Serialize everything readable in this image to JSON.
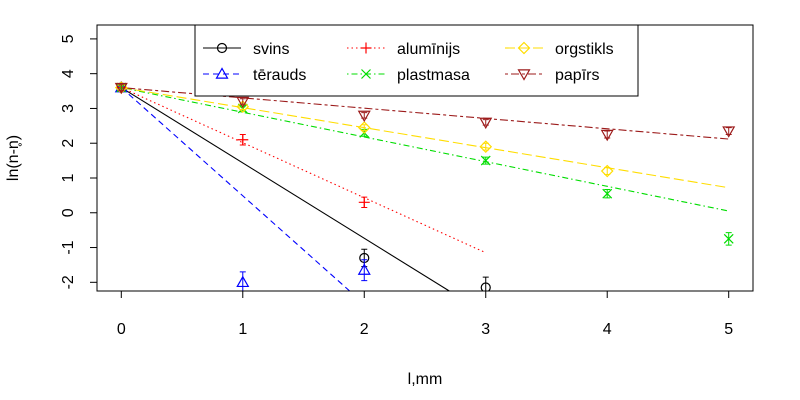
{
  "chart_data": {
    "type": "scatter",
    "title": "",
    "xlabel": "l,mm",
    "ylabel": "ln(n-n̥)",
    "xlim": [
      -0.2,
      5.2
    ],
    "ylim": [
      -2.25,
      5.4
    ],
    "x_ticks": [
      0,
      1,
      2,
      3,
      4,
      5
    ],
    "y_ticks": [
      -2,
      -1,
      0,
      1,
      2,
      3,
      4,
      5
    ],
    "grid": false,
    "legend_position": "top",
    "series": [
      {
        "name": "svins",
        "color": "#000000",
        "marker": "circle",
        "line": "solid",
        "x": [
          0,
          2,
          3
        ],
        "y": [
          3.6,
          -1.3,
          -2.15
        ],
        "err": [
          0.1,
          0.25,
          0.3
        ],
        "fit": {
          "x": [
            0,
            2.7
          ],
          "y": [
            3.6,
            -2.25
          ]
        }
      },
      {
        "name": "tērauds",
        "color": "#0000ff",
        "marker": "triangle-up",
        "line": "dashed",
        "x": [
          0,
          1,
          2
        ],
        "y": [
          3.6,
          -2.0,
          -1.65
        ],
        "err": [
          0.1,
          0.3,
          0.3
        ],
        "fit": {
          "x": [
            0,
            1.88
          ],
          "y": [
            3.6,
            -2.25
          ]
        }
      },
      {
        "name": "alumīnijs",
        "color": "#ff0000",
        "marker": "plus",
        "line": "dotted",
        "x": [
          0,
          1,
          2
        ],
        "y": [
          3.6,
          2.1,
          0.3
        ],
        "err": [
          0.1,
          0.15,
          0.15
        ],
        "fit": {
          "x": [
            0,
            3
          ],
          "y": [
            3.6,
            -1.15
          ]
        }
      },
      {
        "name": "plastmasa",
        "color": "#00dd00",
        "marker": "cross",
        "line": "dashdot",
        "x": [
          0,
          1,
          2,
          3,
          4,
          5
        ],
        "y": [
          3.6,
          3.0,
          2.3,
          1.5,
          0.55,
          -0.75
        ],
        "err": [
          0.08,
          0.08,
          0.1,
          0.1,
          0.12,
          0.18
        ],
        "fit": {
          "x": [
            0,
            5
          ],
          "y": [
            3.6,
            0.05
          ]
        }
      },
      {
        "name": "orgstikls",
        "color": "#ffdd00",
        "marker": "diamond",
        "line": "longdash",
        "x": [
          0,
          1,
          2,
          3,
          4
        ],
        "y": [
          3.6,
          3.05,
          2.45,
          1.9,
          1.2
        ],
        "err": [
          0.08,
          0.08,
          0.08,
          0.1,
          0.1
        ],
        "fit": {
          "x": [
            0,
            5
          ],
          "y": [
            3.6,
            0.72
          ]
        }
      },
      {
        "name": "papīrs",
        "color": "#9c1b1b",
        "marker": "triangle-down",
        "line": "twodash",
        "x": [
          0,
          1,
          2,
          3,
          4,
          5
        ],
        "y": [
          3.6,
          3.2,
          2.8,
          2.6,
          2.25,
          2.35
        ],
        "err": [
          0.08,
          0.08,
          0.08,
          0.08,
          0.1,
          0.1
        ],
        "fit": {
          "x": [
            0,
            5
          ],
          "y": [
            3.6,
            2.12
          ]
        }
      }
    ]
  }
}
